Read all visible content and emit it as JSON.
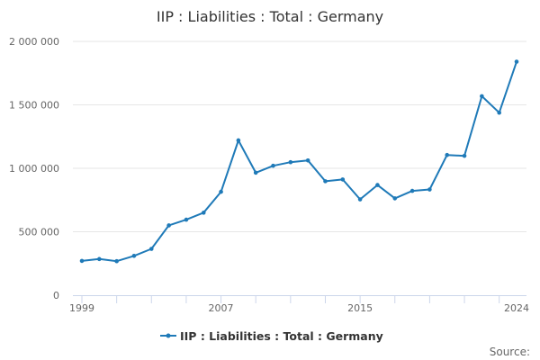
{
  "chart_data": {
    "type": "line",
    "title": "IIP : Liabilities : Total : Germany",
    "xlabel": "",
    "ylabel": "",
    "x": [
      1999,
      2000,
      2001,
      2002,
      2003,
      2004,
      2005,
      2006,
      2007,
      2008,
      2009,
      2010,
      2011,
      2012,
      2013,
      2014,
      2015,
      2016,
      2017,
      2018,
      2019,
      2020,
      2021,
      2022,
      2023,
      2024
    ],
    "series": [
      {
        "name": "IIP : Liabilities : Total : Germany",
        "color": "#1f7ab8",
        "values": [
          270000,
          285000,
          268000,
          310000,
          365000,
          550000,
          595000,
          650000,
          815000,
          1220000,
          965000,
          1020000,
          1048000,
          1062000,
          898000,
          912000,
          755000,
          868000,
          763000,
          822000,
          833000,
          1105000,
          1098000,
          1568000,
          1438000,
          1840000
        ]
      }
    ],
    "xlim": [
      1999,
      2024
    ],
    "ylim": [
      0,
      2000000
    ],
    "y_ticks": [
      0,
      500000,
      1000000,
      1500000,
      2000000
    ],
    "y_tick_labels": [
      "0",
      "500 000",
      "1 000 000",
      "1 500 000",
      "2 000 000"
    ],
    "x_tick_labels": [
      {
        "year": 1999,
        "label": "1999"
      },
      {
        "year": 2007,
        "label": "2007"
      },
      {
        "year": 2015,
        "label": "2015"
      },
      {
        "year": 2024,
        "label": "2024"
      }
    ],
    "grid": true,
    "legend": "bottom-center",
    "source_label": "Source:"
  }
}
